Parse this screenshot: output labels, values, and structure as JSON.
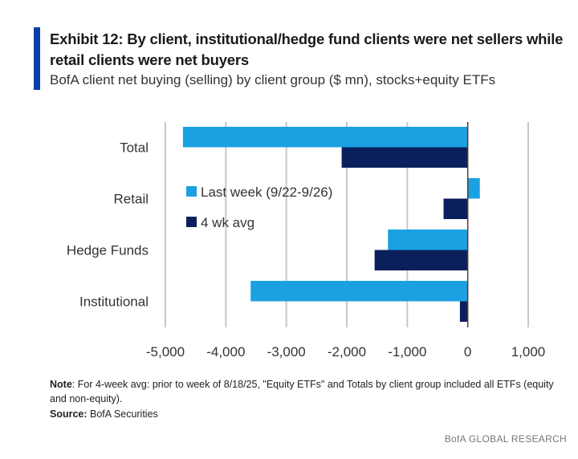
{
  "header": {
    "title": "Exhibit 12: By client, institutional/hedge fund clients were net sellers while retail clients were net buyers",
    "subtitle": "BofA client net buying (selling) by client group ($ mn), stocks+equity ETFs"
  },
  "chart_data": {
    "type": "bar",
    "orientation": "horizontal",
    "title": "",
    "xlabel": "",
    "ylabel": "",
    "categories": [
      "Total",
      "Retail",
      "Hedge Funds",
      "Institutional"
    ],
    "series": [
      {
        "name": "Last week (9/22-9/26)",
        "color": "#1ba1e2",
        "values": [
          -4710,
          200,
          -1320,
          -3590
        ]
      },
      {
        "name": "4 wk avg",
        "color": "#0b1f5c",
        "values": [
          -2085,
          -400,
          -1540,
          -130
        ]
      }
    ],
    "xlim": [
      -5000,
      1000
    ],
    "xticks": [
      "-5,000",
      "-4,000",
      "-3,000",
      "-2,000",
      "-1,000",
      "0",
      "1,000"
    ],
    "xtick_values": [
      -5000,
      -4000,
      -3000,
      -2000,
      -1000,
      0,
      1000
    ],
    "grid": "vertical",
    "legend": "inside-center-left"
  },
  "footer": {
    "note_label": "Note",
    "note_text": ": For 4-week avg: prior to week of 8/18/25, \"Equity ETFs\" and Totals by client group included all ETFs (equity and non-equity).",
    "source_label": "Source:",
    "source_text": " BofA Securities",
    "brand": "BofA GLOBAL RESEARCH"
  }
}
